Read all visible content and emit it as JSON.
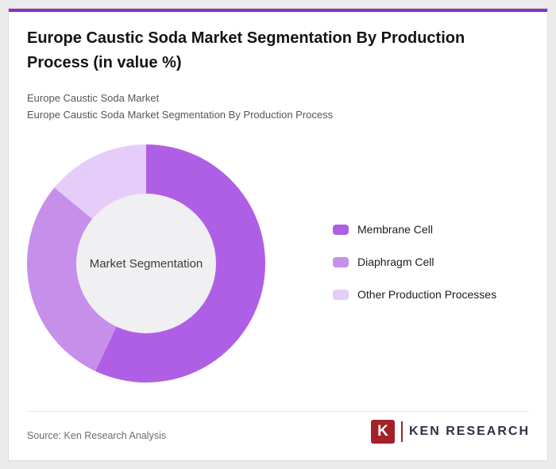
{
  "page": {
    "title": "Europe Caustic Soda Market Segmentation By Production Process (in value %)",
    "subtitle_line1": "Europe Caustic Soda Market",
    "subtitle_line2": "Europe Caustic Soda Market Segmentation By Production Process",
    "accent_color": "#8B30C9"
  },
  "chart_data": {
    "type": "pie",
    "donut": true,
    "title": "Europe Caustic Soda Market Segmentation By Production Process (in value %)",
    "center_label": "Market Segmentation",
    "categories": [
      "Membrane Cell",
      "Diaphragm Cell",
      "Other Production Processes"
    ],
    "values": [
      57,
      29,
      14
    ],
    "unit": "%",
    "colors": [
      "#AF5FE6",
      "#C68FEA",
      "#E6CCF8"
    ],
    "hole_color": "#F0EFF1",
    "start_angle_deg": 0,
    "direction": "clockwise",
    "legend_position": "right",
    "data_labels_shown": false
  },
  "footer": {
    "source": "Source: Ken Research Analysis",
    "logo": {
      "mark_letter": "K",
      "brand_text": "KEN RESEARCH",
      "brand_color": "#A42127"
    }
  }
}
